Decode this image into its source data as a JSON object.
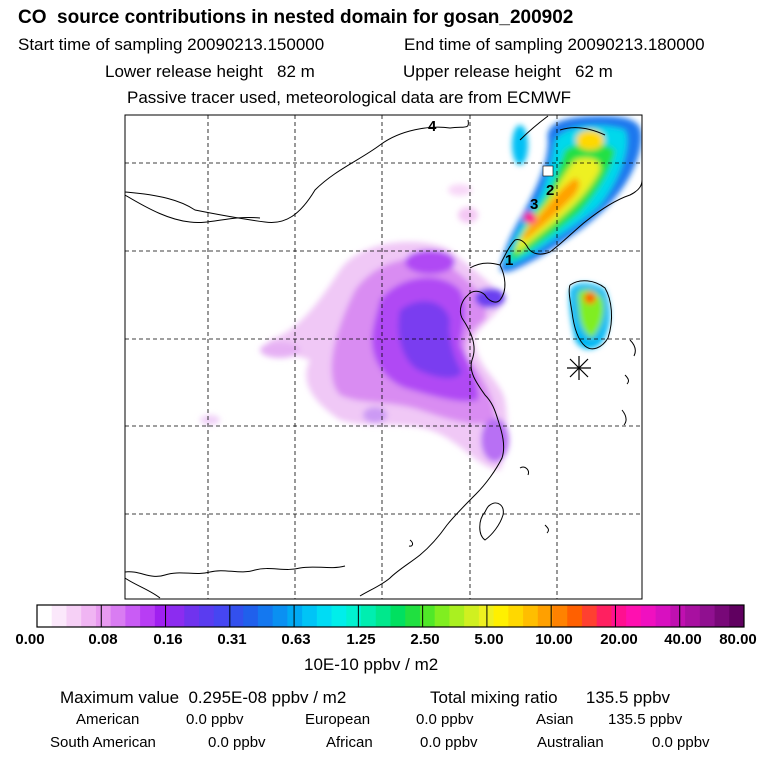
{
  "header": {
    "title": "CO  source contributions in nested domain for gosan_200902",
    "start_time": "Start time of sampling 20090213.150000",
    "end_time": "End time of sampling 20090213.180000",
    "lower_height": "Lower release height   82 m",
    "upper_height": "Upper release height   62 m",
    "tracer_note": "Passive tracer used, meteorological data are from ECMWF"
  },
  "map": {
    "markers": [
      "1",
      "2",
      "3",
      "4"
    ],
    "station_symbol": "asterisk-icon"
  },
  "colorbar": {
    "tick_labels": [
      "0.00",
      "0.08",
      "0.16",
      "0.31",
      "0.63",
      "1.25",
      "2.50",
      "5.00",
      "10.00",
      "20.00",
      "40.00",
      "80.00"
    ],
    "unit": "10E-10 ppbv / m2",
    "colors": [
      "#ffffff",
      "#fbe8fb",
      "#f6d0f6",
      "#f0b5f3",
      "#e89af0",
      "#d97cf2",
      "#c95cf5",
      "#b83df4",
      "#a020f0",
      "#8c2cf0",
      "#7033ee",
      "#5a3cf0",
      "#4646f2",
      "#3350ee",
      "#2060ec",
      "#1478f0",
      "#0a90f2",
      "#00aaf4",
      "#00c4f6",
      "#00dcf4",
      "#00eeea",
      "#00f2d0",
      "#00eeb0",
      "#00e88c",
      "#00e060",
      "#20e040",
      "#50e828",
      "#80ee20",
      "#aaf020",
      "#d0f020",
      "#eef020",
      "#fff000",
      "#ffd800",
      "#ffbe00",
      "#ffa000",
      "#ff8200",
      "#ff6000",
      "#ff4030",
      "#ff2060",
      "#ff1090",
      "#ff10b0",
      "#f010c0",
      "#d810c0",
      "#c010b0",
      "#a810a0",
      "#901090",
      "#780878",
      "#600060"
    ]
  },
  "stats": {
    "maximum": "Maximum value  0.295E-08 ppbv / m2",
    "total": "Total mixing ratio      135.5 ppbv",
    "american_label": "American",
    "american_value": "0.0 ppbv",
    "european_label": "European",
    "european_value": "0.0 ppbv",
    "asian_label": "Asian",
    "asian_value": "135.5 ppbv",
    "south_american_label": "South American",
    "south_american_value": "0.0 ppbv",
    "african_label": "African",
    "african_value": "0.0 ppbv",
    "australian_label": "Australian",
    "australian_value": "0.0 ppbv"
  }
}
